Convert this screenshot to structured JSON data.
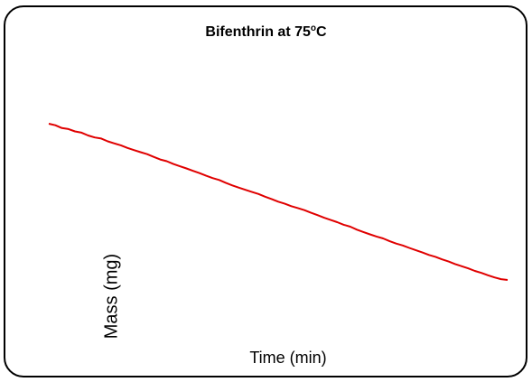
{
  "chart_data": {
    "type": "line",
    "title_main": "Bifenthrin at 75",
    "title_sup": "o",
    "title_end": "C",
    "xlabel": "Time (min)",
    "ylabel": "Mass (mg)",
    "line_color": "#e00000",
    "series": [
      {
        "values": [
          [
            0,
            1.0
          ],
          [
            0.5,
            0.99
          ],
          [
            1,
            0.972
          ],
          [
            1.5,
            0.966
          ],
          [
            2,
            0.951
          ],
          [
            2.5,
            0.943
          ],
          [
            3,
            0.925
          ],
          [
            3.5,
            0.912
          ],
          [
            4,
            0.905
          ],
          [
            4.5,
            0.887
          ],
          [
            5,
            0.874
          ],
          [
            5.5,
            0.862
          ],
          [
            6,
            0.845
          ],
          [
            6.5,
            0.831
          ],
          [
            7,
            0.818
          ],
          [
            7.5,
            0.805
          ],
          [
            8,
            0.788
          ],
          [
            8.5,
            0.771
          ],
          [
            9,
            0.76
          ],
          [
            9.5,
            0.742
          ],
          [
            10,
            0.728
          ],
          [
            10.5,
            0.714
          ],
          [
            11,
            0.698
          ],
          [
            11.5,
            0.684
          ],
          [
            12,
            0.667
          ],
          [
            12.5,
            0.652
          ],
          [
            13,
            0.64
          ],
          [
            13.5,
            0.622
          ],
          [
            14,
            0.605
          ],
          [
            14.5,
            0.591
          ],
          [
            15,
            0.577
          ],
          [
            15.5,
            0.563
          ],
          [
            16,
            0.55
          ],
          [
            16.5,
            0.533
          ],
          [
            17,
            0.518
          ],
          [
            17.5,
            0.501
          ],
          [
            18,
            0.488
          ],
          [
            18.5,
            0.472
          ],
          [
            19,
            0.46
          ],
          [
            19.5,
            0.447
          ],
          [
            20,
            0.43
          ],
          [
            20.5,
            0.415
          ],
          [
            21,
            0.398
          ],
          [
            21.5,
            0.384
          ],
          [
            22,
            0.37
          ],
          [
            22.5,
            0.353
          ],
          [
            23,
            0.341
          ],
          [
            23.5,
            0.322
          ],
          [
            24,
            0.307
          ],
          [
            24.5,
            0.292
          ],
          [
            25,
            0.278
          ],
          [
            25.5,
            0.266
          ],
          [
            26,
            0.248
          ],
          [
            26.5,
            0.233
          ],
          [
            27,
            0.221
          ],
          [
            27.5,
            0.205
          ],
          [
            28,
            0.19
          ],
          [
            28.5,
            0.176
          ],
          [
            29,
            0.16
          ],
          [
            29.5,
            0.148
          ],
          [
            30,
            0.132
          ],
          [
            30.5,
            0.118
          ],
          [
            31,
            0.102
          ],
          [
            31.5,
            0.088
          ],
          [
            32,
            0.074
          ],
          [
            32.5,
            0.058
          ],
          [
            33,
            0.045
          ],
          [
            33.5,
            0.03
          ],
          [
            34,
            0.016
          ],
          [
            34.5,
            0.005
          ],
          [
            35,
            0.0
          ]
        ]
      }
    ],
    "xlim": [
      0,
      35
    ],
    "ylim": [
      0,
      1
    ],
    "grid": false
  }
}
